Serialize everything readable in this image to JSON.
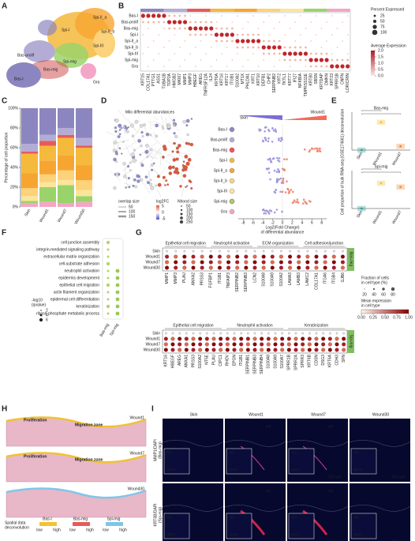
{
  "panel_letters": [
    "A",
    "B",
    "C",
    "D",
    "E",
    "F",
    "G",
    "H",
    "I"
  ],
  "umap": {
    "clusters": [
      "Spi-I",
      "Spi-II_a",
      "Spi-II_b",
      "Bas-prolif",
      "Spi-III",
      "Spi-mig",
      "Bas-mig",
      "Bas-I",
      "Gra"
    ]
  },
  "dotplot": {
    "rows": [
      "Bas-I",
      "Bas-prolif",
      "Bas-mig",
      "Spi-I",
      "Spi-II_a",
      "Spi-II_b",
      "Spi-III",
      "Spi-mig",
      "Gra"
    ],
    "genes": [
      "KRT15",
      "COL17A1",
      "PTTG1",
      "ASS1",
      "TUBA1B",
      "TOP2A",
      "HMGB2",
      "MKI67",
      "MMP1",
      "MMP3",
      "HBEGF",
      "AREG",
      "TNFRSF12A",
      "IL24",
      "KRT6A",
      "KRT16",
      "KRT17",
      "ITGB1",
      "S100A2",
      "MT1X",
      "PHLDA1",
      "KRT1",
      "KRT10",
      "DEFB1",
      "CHP2",
      "SERPINB2",
      "KRT2",
      "TKTL1",
      "KRT77",
      "IFI27",
      "NFKBIA",
      "TMPRSS11E",
      "KRT80",
      "SBSN",
      "KRTDAP",
      "DMKN",
      "KRT23",
      "SPRR1B",
      "CNFN",
      "LORICRIN"
    ],
    "size_title": "Percent Expressed",
    "size_ticks": [
      25,
      50,
      75,
      100
    ],
    "color_title": "Average Expression",
    "color_ticks": [
      {
        "value": 0,
        "label": "0.0"
      },
      {
        "value": 0.5,
        "label": "0.5"
      },
      {
        "value": 1,
        "label": "1.0"
      },
      {
        "value": 1.5,
        "label": "1.5"
      },
      {
        "value": 2,
        "label": "2.0"
      }
    ]
  },
  "chart_data": [
    {
      "type": "stacked-bar",
      "ylabel": "Percentage of cell proportion",
      "categories": [
        "Skin",
        "Wound1",
        "Wound7",
        "Wound30"
      ],
      "ylim": [
        0,
        100
      ],
      "yticks": [
        {
          "value": 0,
          "label": "0%"
        },
        {
          "value": 20,
          "label": "20%"
        },
        {
          "value": 40,
          "label": "40%"
        },
        {
          "value": 60,
          "label": "60%"
        },
        {
          "value": 80,
          "label": "80%"
        },
        {
          "value": 100,
          "label": "100%"
        }
      ],
      "series": [
        {
          "name": "Gra",
          "color": "#f4a6c6",
          "values": [
            4,
            5,
            4,
            5
          ]
        },
        {
          "name": "Spi-mig",
          "color": "#9bd36b",
          "values": [
            2,
            15,
            18,
            6
          ]
        },
        {
          "name": "Spi-III",
          "color": "#fbe59a",
          "values": [
            5,
            5,
            5,
            6
          ]
        },
        {
          "name": "Spi-II_b",
          "color": "#fcd27a",
          "values": [
            8,
            8,
            10,
            10
          ]
        },
        {
          "name": "Spi-II_a",
          "color": "#f7a531",
          "values": [
            15,
            14,
            15,
            15
          ]
        },
        {
          "name": "Spi-I",
          "color": "#f5b93c",
          "values": [
            20,
            15,
            18,
            18
          ]
        },
        {
          "name": "Bas-mig",
          "color": "#e85a5a",
          "values": [
            2,
            5,
            3,
            2
          ]
        },
        {
          "name": "Bas-prolif",
          "color": "#b3add6",
          "values": [
            8,
            6,
            7,
            8
          ]
        },
        {
          "name": "Bas-I",
          "color": "#8c86c0",
          "values": [
            36,
            27,
            20,
            30
          ]
        }
      ]
    },
    {
      "type": "dot",
      "title": "Bas-mig",
      "categories": [
        "Skin",
        "Wound1",
        "Wound7"
      ],
      "colors": [
        "#2aa198",
        "#f2c230",
        "#f08a3c"
      ],
      "values": [
        0.0,
        0.22,
        0.03
      ],
      "ylim": [
        0,
        0.3
      ]
    },
    {
      "type": "dot",
      "title": "Spi-mig",
      "categories": [
        "Skin",
        "Wound1",
        "Wound7"
      ],
      "colors": [
        "#2aa198",
        "#f2c230",
        "#f08a3c"
      ],
      "values": [
        0.0,
        0.2,
        0.17
      ],
      "ylim": [
        0,
        0.3
      ],
      "ylabel": "Cell proportion of bulk RNA-seq (GSE174661) deconvolution"
    }
  ],
  "milo": {
    "title": "Milo differential abundances",
    "groups": [
      "Skin",
      "Wound1"
    ],
    "rows": [
      "Bas-I",
      "Bas-prolif",
      "Bas-mig",
      "Spi-I",
      "Spi-II_a",
      "Spi-II_b",
      "Spi-III",
      "Spi-mig",
      "Gra"
    ],
    "xticks": [
      -8,
      -6,
      -4,
      -2,
      0,
      2,
      4,
      6,
      8
    ],
    "xlim": [
      -9,
      9
    ],
    "xlabel": "Log2(Fold Change)",
    "xlabel2": "of differential abundance",
    "overlap_title": "overlap size",
    "overlap_ticks": [
      50,
      100,
      150
    ],
    "fc_title": "log2FC",
    "fc_ticks": [
      5,
      0,
      -5
    ],
    "nhood_title": "Nhood size",
    "nhood_ticks": [
      50,
      100,
      150,
      200,
      250
    ]
  },
  "go": {
    "terms": [
      {
        "text": "cell junction assembly",
        "color": "#2b6cb0"
      },
      {
        "text": "integrin-mediated signaling pathway",
        "color": "#222"
      },
      {
        "text": "extracellular matrix organization",
        "color": "#2b6cb0"
      },
      {
        "text": "cell-substrate adhesion",
        "color": "#2b6cb0"
      },
      {
        "text": "neutrophil activation",
        "color": "#d62728"
      },
      {
        "text": "epidermis development",
        "color": "#222"
      },
      {
        "text": "epithelial cell migration",
        "color": "#d62728"
      },
      {
        "text": "actin filament organization",
        "color": "#222"
      },
      {
        "text": "epidermal cell differentiation",
        "color": "#2ca02c"
      },
      {
        "text": "keratinization",
        "color": "#222"
      },
      {
        "text": "ribose phosphate metabolic process",
        "color": "#222"
      }
    ],
    "columns": [
      "Bas-mig",
      "Spi-mig"
    ],
    "legend_title": "-log10",
    "legend_title2": "(qvalue)",
    "legend_ticks": [
      2,
      4,
      6
    ]
  },
  "expr": {
    "top_headers": [
      "Epithelial cell migration",
      "Neutrophil activation",
      "ECM organization",
      "Cell adhesion/junction"
    ],
    "top_genes": [
      "MMP1",
      "MMP3",
      "PLAU",
      "ANXA2",
      "PRSS3",
      "FGFBP1",
      "ITGB1",
      "TNFAIP3",
      "SERPINB2",
      "SERPINB3",
      "LCN2",
      "S100A8",
      "S100A9",
      "S100A2",
      "LAMA3",
      "LAMB3",
      "LAMC2",
      "COL17A1",
      "ITGA6",
      "ITGB4",
      "GJB6"
    ],
    "top_side": "Bas-mig",
    "bottom_headers": [
      "Epithelial cell migration",
      "Neutrophil activation",
      "Keratinization"
    ],
    "bottom_genes": [
      "KRT16",
      "HBEGF",
      "AREG",
      "ANXA1",
      "PRSS3",
      "S100A2",
      "NT5E",
      "PLAU",
      "CIPC1",
      "RHOV",
      "EPGN",
      "ITGB1",
      "SERPINB1",
      "SERPINB3",
      "SERPINB4",
      "S100A8",
      "S100A9",
      "S100A7",
      "SPRR1B",
      "SPRR2A",
      "SPRR3",
      "KRT6B",
      "CDSN",
      "DSG3",
      "KRT6A",
      "CDH3",
      "SFN"
    ],
    "bottom_side": "Spi-mig",
    "rows": [
      "Skin",
      "Wound1",
      "Wound7",
      "Wound30"
    ],
    "frac_title": "Fraction of cells",
    "frac_title2": "in cell type (%)",
    "frac_ticks": [
      20,
      40,
      60,
      80
    ],
    "mean_title": "Mean expression",
    "mean_title2": "in cell type",
    "mean_ticks": [
      {
        "value": 0,
        "label": "0.00"
      },
      {
        "value": 0.25,
        "label": "0.25"
      },
      {
        "value": 0.5,
        "label": "0.50"
      },
      {
        "value": 0.75,
        "label": "0.75"
      },
      {
        "value": 1,
        "label": "1.00"
      }
    ]
  },
  "spatial": {
    "labels": [
      "Proliferation",
      "Migration zone"
    ],
    "samples": [
      "Wound1",
      "Wound7",
      "Wound30"
    ],
    "legend_title": "Spatial data",
    "legend_title2": "deconvolution",
    "legend_items": [
      "Bas-I",
      "Bas-mig",
      "Spi-mig"
    ],
    "low": "low",
    "high": "high"
  },
  "ihc": {
    "columns": [
      "Skin",
      "Wound1",
      "Wound7",
      "Wound30"
    ],
    "rows": [
      [
        "MMP1/DAPI",
        "(Bas-mig)"
      ],
      [
        "KRT6B/DAPI",
        "(Spi-mig)"
      ]
    ],
    "epi": "epi.",
    "derm": "derm.",
    "wb": "wb",
    "scale_small": "200 um",
    "scale_big": "500 um"
  }
}
